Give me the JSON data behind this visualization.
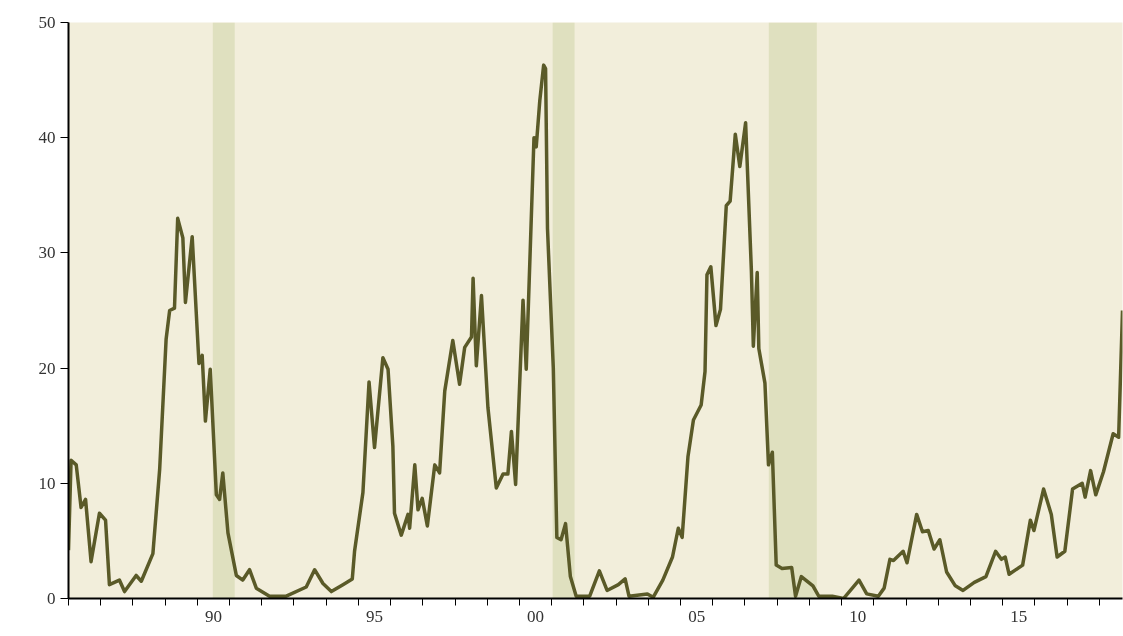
{
  "chart_data": {
    "type": "line",
    "xlim": [
      1985.5,
      2018.22
    ],
    "ylim": [
      0,
      50
    ],
    "xticks": [
      {
        "value": 1985.5,
        "label": null
      },
      {
        "value": 1986.5,
        "label": null
      },
      {
        "value": 1987.5,
        "label": null
      },
      {
        "value": 1988.5,
        "label": null
      },
      {
        "value": 1989.5,
        "label": null
      },
      {
        "value": 1990.5,
        "label": null
      },
      {
        "value": 1991.5,
        "label": null
      },
      {
        "value": 1992.5,
        "label": null
      },
      {
        "value": 1993.5,
        "label": null
      },
      {
        "value": 1994.5,
        "label": null
      },
      {
        "value": 1995.5,
        "label": null
      },
      {
        "value": 1996.5,
        "label": null
      },
      {
        "value": 1997.5,
        "label": null
      },
      {
        "value": 1998.5,
        "label": null
      },
      {
        "value": 1999.5,
        "label": null
      },
      {
        "value": 2000.5,
        "label": null
      },
      {
        "value": 2001.5,
        "label": null
      },
      {
        "value": 2002.5,
        "label": null
      },
      {
        "value": 2003.5,
        "label": null
      },
      {
        "value": 2004.5,
        "label": null
      },
      {
        "value": 2005.5,
        "label": null
      },
      {
        "value": 2006.5,
        "label": null
      },
      {
        "value": 2007.5,
        "label": null
      },
      {
        "value": 2008.5,
        "label": null
      },
      {
        "value": 2009.5,
        "label": null
      },
      {
        "value": 2010.5,
        "label": null
      },
      {
        "value": 2011.5,
        "label": null
      },
      {
        "value": 2012.5,
        "label": null
      },
      {
        "value": 2013.5,
        "label": null
      },
      {
        "value": 2014.5,
        "label": null
      },
      {
        "value": 2015.5,
        "label": null
      },
      {
        "value": 2016.5,
        "label": null
      },
      {
        "value": 2017.5,
        "label": null
      },
      {
        "value": 1990,
        "label": "90"
      },
      {
        "value": 1995,
        "label": "95"
      },
      {
        "value": 2000,
        "label": "00"
      },
      {
        "value": 2005,
        "label": "05"
      },
      {
        "value": 2010,
        "label": "10"
      },
      {
        "value": 2015,
        "label": "15"
      }
    ],
    "yticks": [
      0,
      10,
      20,
      30,
      40,
      50
    ],
    "grid": false,
    "marker": "none",
    "line_style": "solid",
    "bands": [
      {
        "axis": "x",
        "from": 1989.98,
        "to": 1990.66,
        "color": "#dfe0bf"
      },
      {
        "axis": "x",
        "from": 2000.53,
        "to": 2001.21,
        "color": "#dfe0bf"
      },
      {
        "axis": "x",
        "from": 2007.24,
        "to": 2008.73,
        "color": "#dfe0bf"
      }
    ],
    "series": [
      {
        "color": "#5a5a28",
        "x": [
          1985.5,
          1985.58,
          1985.74,
          1985.89,
          1986.03,
          1986.2,
          1986.46,
          1986.65,
          1986.77,
          1987.08,
          1987.24,
          1987.6,
          1987.76,
          1988.12,
          1988.33,
          1988.53,
          1988.64,
          1988.79,
          1988.89,
          1989.05,
          1989.13,
          1989.34,
          1989.55,
          1989.65,
          1989.75,
          1989.9,
          1990.09,
          1990.19,
          1990.29,
          1990.45,
          1990.71,
          1990.91,
          1991.12,
          1991.33,
          1991.74,
          1992.26,
          1992.88,
          1993.14,
          1993.4,
          1993.66,
          1994.02,
          1994.31,
          1994.38,
          1994.64,
          1994.83,
          1995.0,
          1995.26,
          1995.42,
          1995.57,
          1995.62,
          1995.83,
          1996.04,
          1996.09,
          1996.25,
          1996.35,
          1996.48,
          1996.64,
          1996.87,
          1997.02,
          1997.18,
          1997.43,
          1997.64,
          1997.8,
          1998.01,
          1998.06,
          1998.16,
          1998.32,
          1998.52,
          1998.78,
          1998.99,
          1999.14,
          1999.25,
          1999.38,
          1999.61,
          1999.71,
          1999.95,
          2000.02,
          2000.13,
          2000.25,
          2000.31,
          2000.37,
          2000.55,
          2000.66,
          2000.79,
          2000.93,
          2001.08,
          2001.26,
          2001.68,
          2001.98,
          2002.22,
          2002.57,
          2002.78,
          2002.9,
          2003.47,
          2003.65,
          2003.95,
          2004.25,
          2004.43,
          2004.55,
          2004.73,
          2004.9,
          2005.14,
          2005.26,
          2005.32,
          2005.44,
          2005.6,
          2005.74,
          2005.92,
          2006.04,
          2006.2,
          2006.34,
          2006.52,
          2006.7,
          2006.76,
          2006.88,
          2006.93,
          2007.12,
          2007.23,
          2007.35,
          2007.47,
          2007.65,
          2007.95,
          2008.07,
          2008.25,
          2008.61,
          2008.79,
          2009.21,
          2009.56,
          2010.04,
          2010.28,
          2010.64,
          2010.82,
          2011.0,
          2011.11,
          2011.41,
          2011.53,
          2011.83,
          2012.01,
          2012.19,
          2012.37,
          2012.55,
          2012.76,
          2013.03,
          2013.27,
          2013.62,
          2013.98,
          2014.28,
          2014.46,
          2014.58,
          2014.7,
          2015.12,
          2015.36,
          2015.47,
          2015.77,
          2016.01,
          2016.19,
          2016.43,
          2016.67,
          2016.97,
          2017.06,
          2017.23,
          2017.39,
          2017.63,
          2017.93,
          2018.1,
          2018.22
        ],
        "values": [
          4.2,
          12.0,
          11.6,
          7.9,
          8.6,
          3.2,
          7.4,
          6.8,
          1.2,
          1.6,
          0.6,
          2.0,
          1.5,
          3.9,
          11.2,
          22.5,
          25.0,
          25.2,
          33.0,
          31.3,
          25.7,
          31.4,
          20.4,
          21.1,
          15.4,
          19.9,
          9.0,
          8.6,
          10.9,
          5.7,
          2.0,
          1.6,
          2.5,
          0.9,
          0.2,
          0.2,
          1.0,
          2.5,
          1.3,
          0.6,
          1.2,
          1.7,
          4.1,
          9.2,
          18.8,
          13.1,
          20.9,
          19.9,
          13.2,
          7.4,
          5.5,
          7.3,
          6.1,
          11.6,
          7.7,
          8.7,
          6.3,
          11.6,
          10.9,
          18.0,
          22.4,
          18.6,
          21.8,
          22.7,
          27.8,
          20.2,
          26.3,
          16.6,
          9.6,
          10.8,
          10.8,
          14.5,
          9.9,
          25.9,
          19.9,
          40.0,
          39.2,
          43.2,
          46.3,
          46.0,
          32.1,
          20.0,
          5.3,
          5.1,
          6.5,
          1.9,
          0.2,
          0.2,
          2.4,
          0.7,
          1.2,
          1.7,
          0.2,
          0.4,
          0.1,
          1.6,
          3.6,
          6.1,
          5.3,
          12.3,
          15.5,
          16.8,
          19.7,
          28.1,
          28.8,
          23.7,
          25.1,
          34.1,
          34.5,
          40.3,
          37.5,
          41.3,
          28.4,
          21.9,
          28.3,
          21.7,
          18.7,
          11.6,
          12.7,
          2.9,
          2.6,
          2.7,
          0.2,
          1.9,
          1.1,
          0.2,
          0.2,
          0.0,
          1.6,
          0.4,
          0.2,
          0.9,
          3.4,
          3.3,
          4.1,
          3.1,
          7.3,
          5.8,
          5.9,
          4.3,
          5.1,
          2.3,
          1.1,
          0.7,
          1.4,
          1.9,
          4.1,
          3.4,
          3.6,
          2.1,
          2.9,
          6.8,
          5.9,
          9.5,
          7.3,
          3.6,
          4.1,
          9.5,
          10.0,
          8.8,
          11.1,
          9.0,
          11.0,
          14.3,
          14.0,
          25.0
        ]
      }
    ]
  }
}
